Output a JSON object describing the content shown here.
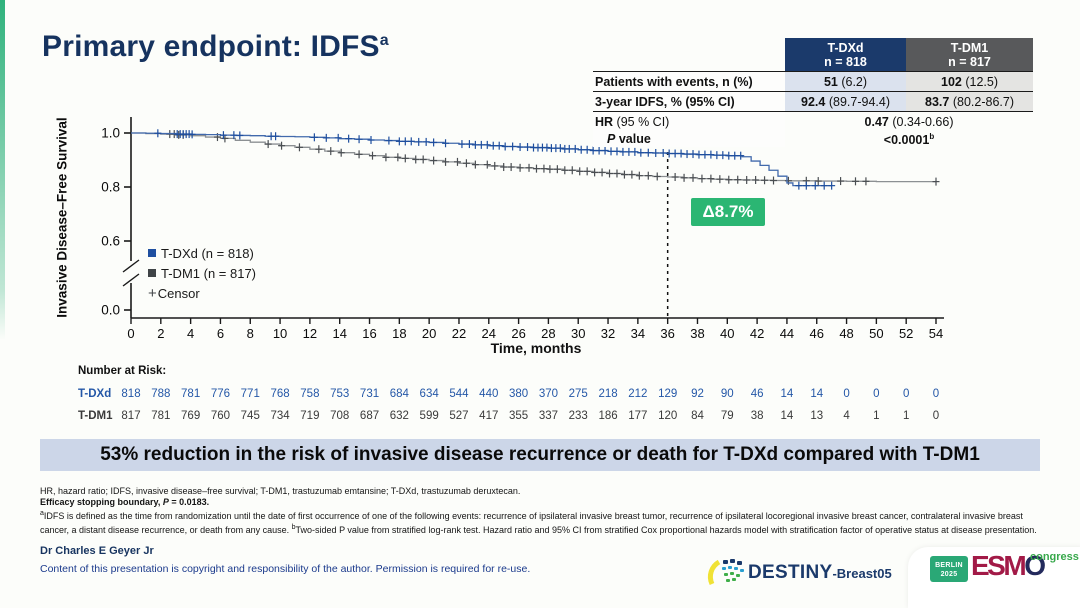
{
  "title": {
    "main": "Primary endpoint: IDFS",
    "sup": "a"
  },
  "results_table": {
    "columns": [
      {
        "name": "T-DXd",
        "n": "n = 818"
      },
      {
        "name": "T-DM1",
        "n": "n = 817"
      }
    ],
    "rows": [
      {
        "label": "Patients with events, n (%)",
        "c1_bold": "51",
        "c1_rest": " (6.2)",
        "c2_bold": "102",
        "c2_rest": " (12.5)"
      },
      {
        "label": "3-year IDFS, % (95% CI)",
        "c1_bold": "92.4",
        "c1_rest": " (89.7-94.4)",
        "c2_bold": "83.7",
        "c2_rest": " (80.2-86.7)"
      }
    ],
    "hr": {
      "label_bold": "HR",
      "label_rest": " (95 % CI)",
      "bold": "0.47",
      "rest": " (0.34-0.66)"
    },
    "p": {
      "label_italic": "P",
      "label_rest": " value",
      "value": "<0.0001",
      "sup": "b"
    }
  },
  "chart_data": {
    "type": "line",
    "title": "Kaplan-Meier invasive disease-free survival",
    "x_label": "Time, months",
    "y_label": "Invasive Disease–Free Survival",
    "xlim": [
      0,
      54
    ],
    "x_ticks": [
      0,
      2,
      4,
      6,
      8,
      10,
      12,
      14,
      16,
      18,
      20,
      22,
      24,
      26,
      28,
      30,
      32,
      34,
      36,
      38,
      40,
      42,
      44,
      46,
      48,
      50,
      52,
      54
    ],
    "y_ticks": [
      "1.0",
      "0.8",
      "0.6",
      "0.0"
    ],
    "y_axis_break": true,
    "grid": false,
    "legend_position": "inside-left",
    "censor_legend": "Censor",
    "annotation": {
      "text": "Δ8.7%",
      "at_month": 36,
      "color": "#2bb673"
    },
    "series": [
      {
        "name": "T-DXd (n = 818)",
        "line_color": "#4169ac",
        "censor_color": "#1e4e9e",
        "legend_color": "#1f4fa0",
        "points": [
          [
            0,
            1.0
          ],
          [
            1,
            0.999
          ],
          [
            2,
            0.998
          ],
          [
            3,
            0.996
          ],
          [
            4,
            0.995
          ],
          [
            5,
            0.994
          ],
          [
            6,
            0.992
          ],
          [
            7,
            0.991
          ],
          [
            8,
            0.99
          ],
          [
            9,
            0.988
          ],
          [
            10,
            0.987
          ],
          [
            11,
            0.986
          ],
          [
            12,
            0.984
          ],
          [
            13,
            0.982
          ],
          [
            14,
            0.979
          ],
          [
            15,
            0.977
          ],
          [
            16,
            0.974
          ],
          [
            17,
            0.972
          ],
          [
            18,
            0.969
          ],
          [
            19,
            0.967
          ],
          [
            20,
            0.965
          ],
          [
            21,
            0.962
          ],
          [
            22,
            0.959
          ],
          [
            23,
            0.956
          ],
          [
            24,
            0.953
          ],
          [
            25,
            0.95
          ],
          [
            26,
            0.948
          ],
          [
            27,
            0.946
          ],
          [
            28,
            0.944
          ],
          [
            29,
            0.941
          ],
          [
            30,
            0.938
          ],
          [
            31,
            0.935
          ],
          [
            32,
            0.932
          ],
          [
            33,
            0.93
          ],
          [
            34,
            0.927
          ],
          [
            35,
            0.926
          ],
          [
            36,
            0.924
          ],
          [
            37,
            0.922
          ],
          [
            38,
            0.92
          ],
          [
            39,
            0.918
          ],
          [
            40,
            0.916
          ],
          [
            41,
            0.912
          ],
          [
            41.6,
            0.896
          ],
          [
            42.2,
            0.88
          ],
          [
            42.8,
            0.862
          ],
          [
            43.4,
            0.84
          ],
          [
            44.0,
            0.815
          ],
          [
            44.4,
            0.805
          ],
          [
            47,
            0.805
          ]
        ],
        "censors": [
          1.8,
          3.1,
          3.3,
          3.5,
          3.7,
          3.9,
          4.1,
          6.2,
          6.9,
          7.3,
          9.4,
          9.7,
          12.3,
          13.1,
          13.9,
          14.6,
          15.3,
          16.1,
          17.3,
          18.0,
          18.4,
          18.8,
          19.3,
          19.8,
          20.3,
          21.1,
          22.2,
          22.7,
          23.1,
          23.5,
          23.9,
          24.3,
          24.7,
          25.1,
          25.6,
          26.1,
          26.6,
          27.0,
          27.3,
          27.6,
          27.9,
          28.2,
          28.5,
          28.8,
          29.1,
          29.4,
          29.8,
          30.2,
          30.6,
          31.0,
          31.4,
          31.8,
          32.2,
          32.6,
          33.0,
          33.4,
          33.8,
          34.2,
          34.7,
          35.2,
          35.7,
          36.1,
          36.5,
          36.9,
          37.3,
          37.7,
          38.1,
          38.5,
          38.9,
          39.3,
          39.7,
          40.1,
          40.5,
          40.9,
          44.8,
          45.3,
          45.9,
          46.5,
          47.0
        ]
      },
      {
        "name": "T-DM1 (n = 817)",
        "line_color": "#8c9093",
        "censor_color": "#4a4e52",
        "legend_color": "#3f4447",
        "points": [
          [
            0,
            1.0
          ],
          [
            1,
            0.998
          ],
          [
            2,
            0.996
          ],
          [
            3,
            0.993
          ],
          [
            4,
            0.99
          ],
          [
            5,
            0.985
          ],
          [
            6,
            0.98
          ],
          [
            7,
            0.973
          ],
          [
            8,
            0.966
          ],
          [
            9,
            0.959
          ],
          [
            10,
            0.953
          ],
          [
            11,
            0.947
          ],
          [
            12,
            0.94
          ],
          [
            13,
            0.933
          ],
          [
            14,
            0.927
          ],
          [
            15,
            0.921
          ],
          [
            16,
            0.916
          ],
          [
            17,
            0.91
          ],
          [
            18,
            0.906
          ],
          [
            19,
            0.902
          ],
          [
            20,
            0.898
          ],
          [
            21,
            0.893
          ],
          [
            22,
            0.888
          ],
          [
            23,
            0.883
          ],
          [
            24,
            0.878
          ],
          [
            25,
            0.874
          ],
          [
            26,
            0.871
          ],
          [
            27,
            0.868
          ],
          [
            28,
            0.866
          ],
          [
            29,
            0.862
          ],
          [
            30,
            0.858
          ],
          [
            31,
            0.854
          ],
          [
            32,
            0.85
          ],
          [
            33,
            0.846
          ],
          [
            34,
            0.842
          ],
          [
            35,
            0.839
          ],
          [
            36,
            0.837
          ],
          [
            37,
            0.834
          ],
          [
            38,
            0.831
          ],
          [
            39,
            0.829
          ],
          [
            40,
            0.827
          ],
          [
            41,
            0.826
          ],
          [
            42,
            0.825
          ],
          [
            43,
            0.824
          ],
          [
            44,
            0.823
          ],
          [
            46,
            0.822
          ],
          [
            48,
            0.821
          ],
          [
            50,
            0.82
          ],
          [
            52,
            0.82
          ],
          [
            54,
            0.82
          ]
        ],
        "censors": [
          2.6,
          2.9,
          3.2,
          3.5,
          5.8,
          6.3,
          9.2,
          10.1,
          11.3,
          12.6,
          13.4,
          14.1,
          15.3,
          16.2,
          17.1,
          17.9,
          18.4,
          19.1,
          19.6,
          20.3,
          21.1,
          21.9,
          22.5,
          23.1,
          23.9,
          24.4,
          25.0,
          25.5,
          26.1,
          26.7,
          27.2,
          27.7,
          28.1,
          28.6,
          29.1,
          29.6,
          30.1,
          30.6,
          31.1,
          31.6,
          32.1,
          32.6,
          33.1,
          33.6,
          34.1,
          34.7,
          35.3,
          36.5,
          37.1,
          37.7,
          38.3,
          38.9,
          39.5,
          40.1,
          40.7,
          41.3,
          41.9,
          42.5,
          43.1,
          44.1,
          45.3,
          46.1,
          47.6,
          48.6,
          49.3,
          54.0
        ]
      }
    ]
  },
  "risk_table": {
    "title": "Number at Risk:",
    "rows": [
      {
        "label": "T-DXd",
        "color": "#2457a7",
        "values": [
          818,
          788,
          781,
          776,
          771,
          768,
          758,
          753,
          731,
          684,
          634,
          544,
          440,
          380,
          370,
          275,
          218,
          212,
          129,
          92,
          90,
          46,
          14,
          14,
          0,
          0,
          0,
          0
        ]
      },
      {
        "label": "T-DM1",
        "color": "#3a3a3a",
        "values": [
          817,
          781,
          769,
          760,
          745,
          734,
          719,
          708,
          687,
          632,
          599,
          527,
          417,
          355,
          337,
          233,
          186,
          177,
          120,
          84,
          79,
          38,
          14,
          13,
          4,
          1,
          1,
          0
        ]
      }
    ]
  },
  "banner": {
    "text": "53% reduction in the risk of invasive disease recurrence or death for T-DXd compared with T-DM1"
  },
  "footnotes": {
    "abbrev": "HR, hazard ratio; IDFS, invasive disease–free survival; T-DM1, trastuzumab emtansine; T-DXd, trastuzumab deruxtecan.",
    "boundary_pre": "Efficacy stopping boundary, ",
    "boundary_p": "P",
    "boundary_post": " = 0.0183.",
    "fn_a_sup": "a",
    "fn_a_text": "IDFS is defined as the time from randomization until the date of first occurrence of one of the following events: recurrence of ipsilateral invasive breast tumor, recurrence of ipsilateral locoregional invasive breast cancer, contralateral invasive breast cancer, a distant disease recurrence, or death from any cause. ",
    "fn_b_sup": "b",
    "fn_b_text": "Two-sided P value from stratified log-rank test. Hazard ratio and 95% CI from stratified Cox proportional hazards model with stratification factor of operative status at disease presentation."
  },
  "footer": {
    "author": "Dr Charles E Geyer Jr",
    "copyright": "Content of this presentation is copyright and responsibility of the author. Permission is required for re-use."
  },
  "logos": {
    "destiny": {
      "main": "DESTINY",
      "sub": "-Breast05"
    },
    "esmo": {
      "city": "BERLIN",
      "year": "2025",
      "l1": "ES",
      "l2": "M",
      "l3": "O",
      "congress": "congress"
    }
  },
  "colors": {
    "title_navy": "#16335f",
    "header_tdxd_bg": "#1b3a6b",
    "header_tdm1_bg": "#58595b",
    "banner_bg": "#ccd6e8",
    "delta_badge_green": "#2bb673",
    "accent_green": "#2fb27c"
  }
}
